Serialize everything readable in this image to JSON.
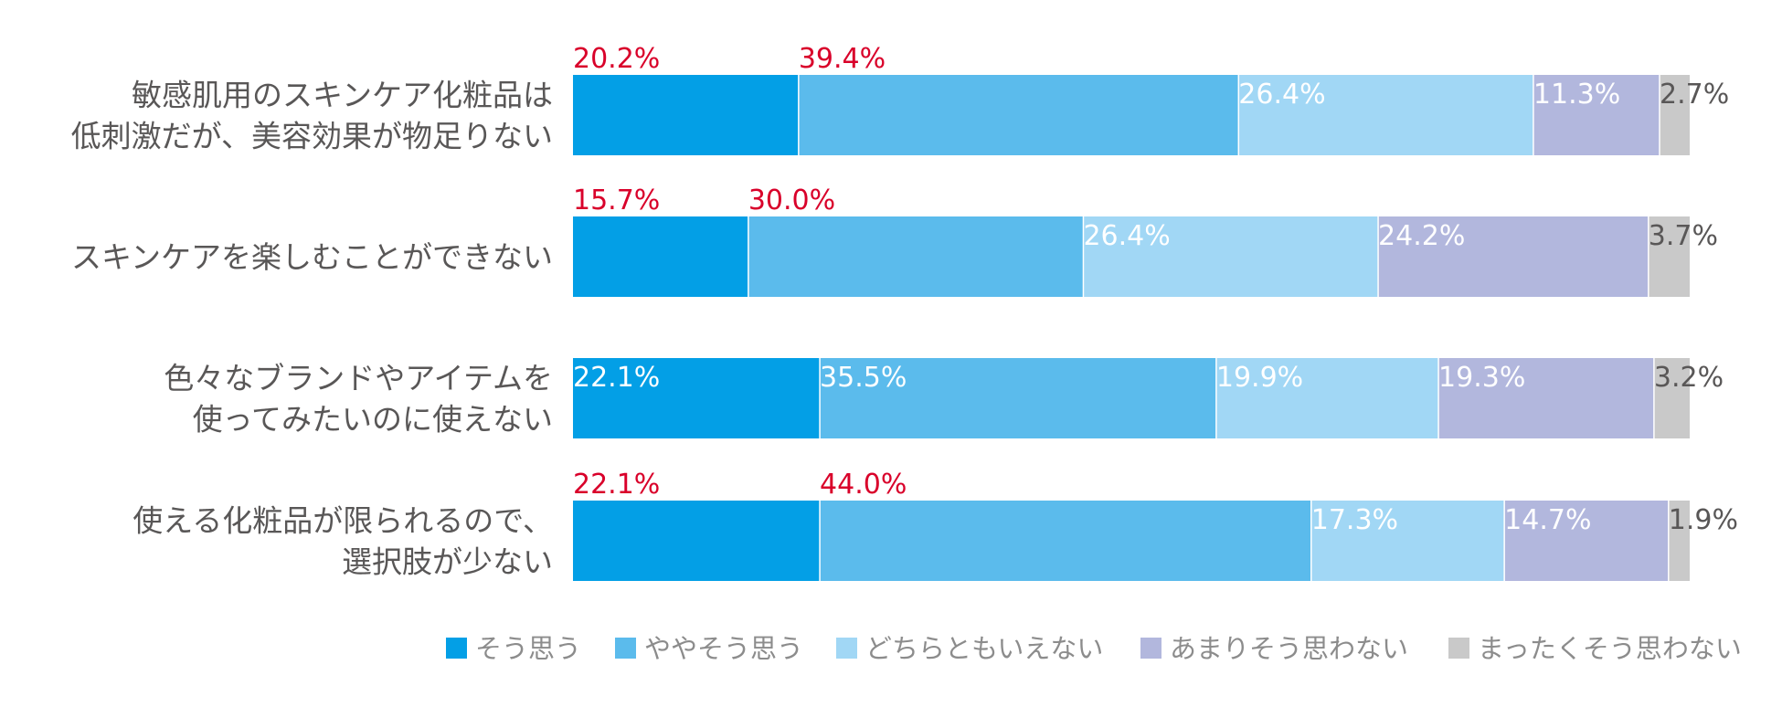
{
  "chart_data": {
    "type": "bar",
    "orientation": "horizontal",
    "stacked": true,
    "percent": true,
    "categories": [
      "敏感肌用のスキンケア化粧品は\n低刺激だが、美容効果が物足りない",
      "スキンケアを楽しむことができない",
      "色々なブランドやアイテムを\n使ってみたいのに使えない",
      "使える化粧品が限られるので、\n選択肢が少ない"
    ],
    "series": [
      {
        "name": "そう思う",
        "color": "#039fe6",
        "values": [
          20.2,
          15.7,
          22.1,
          22.1
        ]
      },
      {
        "name": "ややそう思う",
        "color": "#5bbbec",
        "values": [
          39.4,
          30.0,
          35.5,
          44.0
        ]
      },
      {
        "name": "どちらともいえない",
        "color": "#a1d7f5",
        "values": [
          26.4,
          26.4,
          19.9,
          17.3
        ]
      },
      {
        "name": "あまりそう思わない",
        "color": "#b2b7dd",
        "values": [
          11.3,
          24.2,
          19.3,
          14.7
        ]
      },
      {
        "name": "まったくそう思わない",
        "color": "#c9c9c9",
        "values": [
          2.7,
          3.7,
          3.2,
          1.9
        ]
      }
    ],
    "highlight_color": "#d9002a",
    "highlighted_rows": [
      0,
      1,
      3
    ],
    "legend_position": "bottom",
    "grid": false,
    "title": "",
    "xlabel": "",
    "ylabel": ""
  }
}
